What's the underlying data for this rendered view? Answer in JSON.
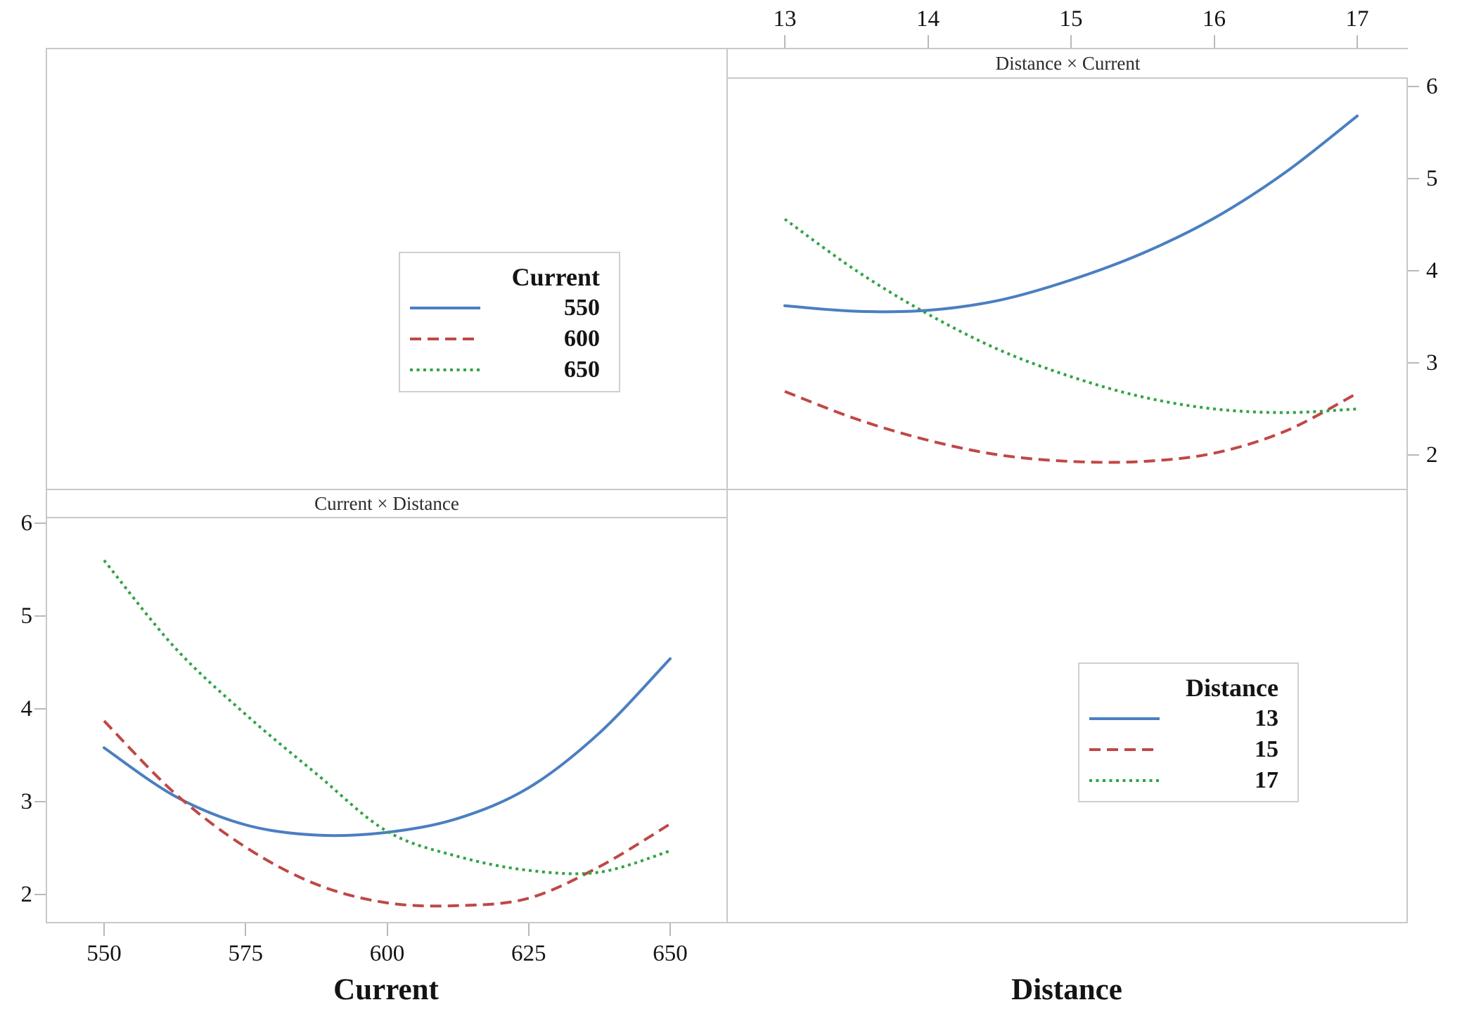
{
  "figure": {
    "description": "Interaction plot matrix",
    "background": "#ffffff",
    "border_color": "#c8c8c8"
  },
  "chart_data": [
    {
      "type": "line",
      "panel": "top-right",
      "panel_title": "Distance × Current",
      "x_axis": {
        "label": "Distance",
        "position": "top",
        "ticks": [
          13,
          14,
          15,
          16,
          17
        ]
      },
      "y_axis": {
        "position": "right",
        "ticks": [
          6,
          5,
          4,
          3,
          2
        ],
        "range": [
          2,
          6
        ]
      },
      "x": [
        13,
        13.5,
        14,
        14.5,
        15,
        15.5,
        16,
        16.5,
        17
      ],
      "series": [
        {
          "name": "550",
          "color": "#4a7fc1",
          "style": "solid",
          "values": [
            3.62,
            3.56,
            3.57,
            3.68,
            3.9,
            4.19,
            4.57,
            5.07,
            5.68
          ]
        },
        {
          "name": "600",
          "color": "#bf4845",
          "style": "dashed",
          "values": [
            2.69,
            2.39,
            2.16,
            2.0,
            1.93,
            1.93,
            2.02,
            2.26,
            2.67
          ]
        },
        {
          "name": "650",
          "color": "#32a346",
          "style": "dotted",
          "values": [
            4.56,
            4.0,
            3.53,
            3.14,
            2.85,
            2.63,
            2.5,
            2.46,
            2.5
          ]
        }
      ]
    },
    {
      "type": "line",
      "panel": "bottom-left",
      "panel_title": "Current × Distance",
      "x_axis": {
        "label": "Current",
        "position": "bottom",
        "ticks": [
          550,
          575,
          600,
          625,
          650
        ]
      },
      "y_axis": {
        "position": "left",
        "ticks": [
          6,
          5,
          4,
          3,
          2
        ],
        "range": [
          2,
          6
        ]
      },
      "x": [
        550,
        562.5,
        575,
        587.5,
        600,
        612.5,
        625,
        637.5,
        650
      ],
      "series": [
        {
          "name": "13",
          "color": "#4a7fc1",
          "style": "solid",
          "values": [
            3.58,
            3.06,
            2.75,
            2.64,
            2.67,
            2.82,
            3.15,
            3.74,
            4.54
          ]
        },
        {
          "name": "15",
          "color": "#bf4845",
          "style": "dashed",
          "values": [
            3.87,
            3.09,
            2.51,
            2.11,
            1.91,
            1.88,
            1.96,
            2.3,
            2.76
          ]
        },
        {
          "name": "17",
          "color": "#32a346",
          "style": "dotted",
          "values": [
            5.6,
            4.66,
            3.94,
            3.3,
            2.68,
            2.41,
            2.26,
            2.24,
            2.47
          ]
        }
      ]
    }
  ],
  "legends": [
    {
      "title": "Current",
      "entries": [
        {
          "label": "550",
          "color": "#4a7fc1",
          "style": "solid"
        },
        {
          "label": "600",
          "color": "#bf4845",
          "style": "dashed"
        },
        {
          "label": "650",
          "color": "#32a346",
          "style": "dotted"
        }
      ]
    },
    {
      "title": "Distance",
      "entries": [
        {
          "label": "13",
          "color": "#4a7fc1",
          "style": "solid"
        },
        {
          "label": "15",
          "color": "#bf4845",
          "style": "dashed"
        },
        {
          "label": "17",
          "color": "#32a346",
          "style": "dotted"
        }
      ]
    }
  ]
}
